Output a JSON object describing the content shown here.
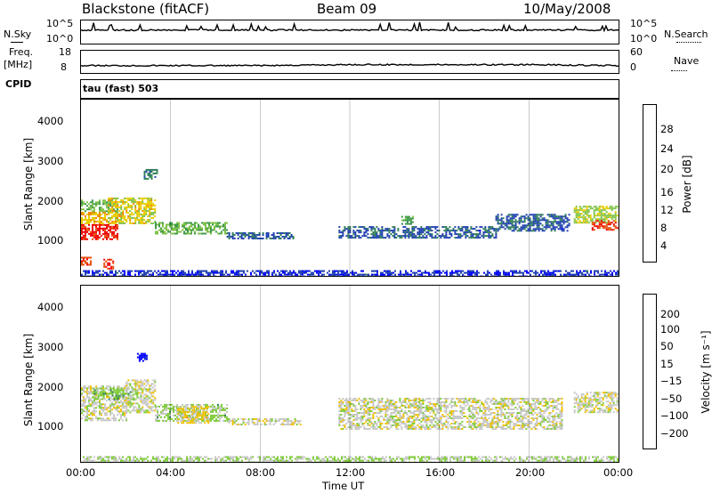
{
  "header": {
    "station": "Blackstone (fitACF)",
    "beam": "Beam 09",
    "date": "10/May/2008"
  },
  "strip_labels": {
    "nsky": "N.Sky",
    "nsky_ticks": [
      "10^5",
      "10^0"
    ],
    "nsearch": "N.Search",
    "nsearch_ticks": [
      "10^5",
      "10^0"
    ],
    "freq": "Freq.",
    "freq_unit": "[MHz]",
    "freq_ticks": [
      "18",
      "8"
    ],
    "nave": "Nave",
    "nave_ticks": [
      "60",
      "0"
    ],
    "cpid": "CPID",
    "cpid_value": "tau (fast) 503"
  },
  "axes": {
    "ylabel": "Slant Range [km]",
    "yticks": [
      "1000",
      "2000",
      "3000",
      "4000"
    ],
    "xlabel": "Time UT",
    "xticks": [
      "00:00",
      "04:00",
      "08:00",
      "12:00",
      "16:00",
      "20:00",
      "00:00"
    ]
  },
  "colorbars": {
    "power": {
      "label": "Power [dB]",
      "ticks": [
        "4",
        "8",
        "12",
        "16",
        "20",
        "24",
        "28"
      ]
    },
    "velocity": {
      "label": "Velocity [m s⁻¹]",
      "ticks": [
        "200",
        "100",
        "50",
        "15",
        "−15",
        "−50",
        "−100",
        "−200"
      ]
    }
  },
  "colors": {
    "power_scale": [
      "#0000ff",
      "#1f3fb0",
      "#2e7d5a",
      "#3f9a4a",
      "#7fc24a",
      "#e8cc00",
      "#f08a00",
      "#e85010",
      "#ee0000"
    ],
    "velocity_scale": [
      "#0000ff",
      "#1f3fb0",
      "#2e7d5a",
      "#7fcc3a",
      "#c8c8c8",
      "#f0c000",
      "#f08a00",
      "#f05010",
      "#ee0000"
    ]
  },
  "chart_data": [
    {
      "type": "line",
      "title": "N.Sky / N.Search",
      "x": [
        "00:00",
        "04:00",
        "08:00",
        "12:00",
        "16:00",
        "20:00",
        "00:00"
      ],
      "series": [
        {
          "name": "N.Sky",
          "values": [
            1000,
            1000,
            1000,
            1000,
            1000,
            1000,
            1000
          ]
        }
      ],
      "ylim": [
        1,
        100000
      ],
      "scale": "log"
    },
    {
      "type": "line",
      "title": "Freq. / Nave",
      "x": [
        "00:00",
        "04:00",
        "08:00",
        "12:00",
        "16:00",
        "20:00",
        "00:00"
      ],
      "series": [
        {
          "name": "Freq.",
          "values": [
            11,
            11,
            11,
            11.5,
            11.5,
            11.5,
            11
          ]
        }
      ],
      "ylim": [
        8,
        18
      ]
    },
    {
      "type": "heatmap",
      "title": "Power",
      "xlabel": "Time UT",
      "ylabel": "Slant Range [km]",
      "xlim_hours": [
        0,
        24
      ],
      "ylim_km": [
        180,
        4500
      ],
      "colorbar": {
        "label": "Power [dB]",
        "range": [
          0,
          30
        ]
      },
      "regions": [
        {
          "t0": 0.0,
          "t1": 1.6,
          "r0": 1100,
          "r1": 1450,
          "value": 28
        },
        {
          "t0": 0.0,
          "t1": 1.6,
          "r0": 1450,
          "r1": 1750,
          "value": 20
        },
        {
          "t0": 0.0,
          "t1": 1.6,
          "r0": 1750,
          "r1": 2050,
          "value": 14
        },
        {
          "t0": 1.2,
          "t1": 3.3,
          "r0": 1450,
          "r1": 2100,
          "value": 18
        },
        {
          "t0": 2.8,
          "t1": 3.4,
          "r0": 2550,
          "r1": 2800,
          "value": 8
        },
        {
          "t0": 3.3,
          "t1": 6.5,
          "r0": 1200,
          "r1": 1500,
          "value": 14
        },
        {
          "t0": 6.5,
          "t1": 9.5,
          "r0": 1100,
          "r1": 1250,
          "value": 6
        },
        {
          "t0": 11.5,
          "t1": 18.5,
          "r0": 1100,
          "r1": 1400,
          "value": 6
        },
        {
          "t0": 14.3,
          "t1": 14.8,
          "r0": 1450,
          "r1": 1650,
          "value": 12
        },
        {
          "t0": 18.5,
          "t1": 21.8,
          "r0": 1300,
          "r1": 1700,
          "value": 6
        },
        {
          "t0": 22.0,
          "t1": 24.0,
          "r0": 1500,
          "r1": 1900,
          "value": 16
        },
        {
          "t0": 22.8,
          "t1": 24.0,
          "r0": 1300,
          "r1": 1550,
          "value": 26
        },
        {
          "t0": 0.0,
          "t1": 0.4,
          "r0": 450,
          "r1": 650,
          "value": 26
        },
        {
          "t0": 1.0,
          "t1": 1.4,
          "r0": 350,
          "r1": 600,
          "value": 28
        },
        {
          "t0": 0.0,
          "t1": 24.0,
          "r0": 180,
          "r1": 320,
          "value": 4
        }
      ]
    },
    {
      "type": "heatmap",
      "title": "Velocity",
      "xlabel": "Time UT",
      "ylabel": "Slant Range [km]",
      "xlim_hours": [
        0,
        24
      ],
      "ylim_km": [
        180,
        4500
      ],
      "colorbar": {
        "label": "Velocity [m s⁻¹]",
        "range": [
          -250,
          250
        ]
      },
      "regions": [
        {
          "t0": 0.0,
          "t1": 2.0,
          "r0": 1200,
          "r1": 2050,
          "value": 0
        },
        {
          "t0": 0.5,
          "t1": 2.5,
          "r0": 1700,
          "r1": 2000,
          "value": -60
        },
        {
          "t0": 2.0,
          "t1": 3.3,
          "r0": 1400,
          "r1": 2200,
          "value": 0
        },
        {
          "t0": 2.5,
          "t1": 2.9,
          "r0": 2650,
          "r1": 2850,
          "value": -220
        },
        {
          "t0": 3.3,
          "t1": 6.5,
          "r0": 1200,
          "r1": 1600,
          "value": -40
        },
        {
          "t0": 4.3,
          "t1": 5.7,
          "r0": 1150,
          "r1": 1550,
          "value": 40
        },
        {
          "t0": 6.5,
          "t1": 9.8,
          "r0": 1100,
          "r1": 1250,
          "value": 0
        },
        {
          "t0": 11.5,
          "t1": 21.5,
          "r0": 1000,
          "r1": 1750,
          "value": 0
        },
        {
          "t0": 22.0,
          "t1": 24.0,
          "r0": 1400,
          "r1": 1900,
          "value": 0
        },
        {
          "t0": 0.0,
          "t1": 24.0,
          "r0": 180,
          "r1": 320,
          "value": -30
        }
      ]
    }
  ]
}
